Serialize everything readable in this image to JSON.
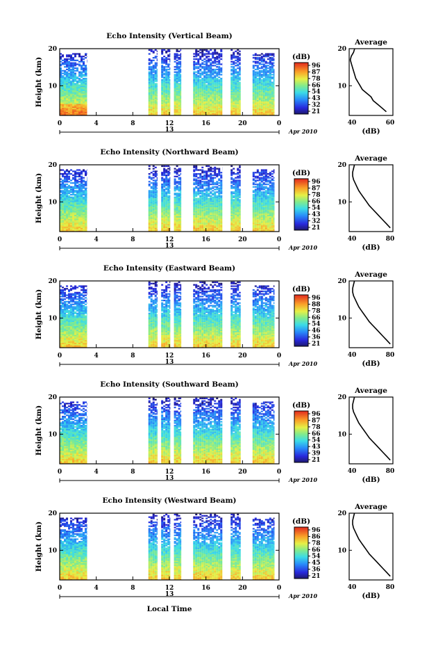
{
  "figure": {
    "x_label": "Local Time",
    "date_label": "Apr 2010",
    "day_label": "13",
    "colorbar_unit": "(dB)",
    "colorbar_ticks": [
      "96",
      "87",
      "78",
      "66",
      "54",
      "43",
      "32",
      "21"
    ],
    "avg_title": "Average",
    "avg_xlabel": "(dB)"
  },
  "chart_data": [
    {
      "type": "heatmap",
      "title": "Echo Intensity (Vertical Beam)",
      "ylabel": "Height (km)",
      "xlim": [
        0,
        24
      ],
      "ylim": [
        2,
        20
      ],
      "x_ticks": [
        "0",
        "4",
        "8",
        "12",
        "16",
        "20",
        "0"
      ],
      "y_ticks": [
        "20",
        "10"
      ],
      "colorbar": {
        "unit": "(dB)",
        "ticks": [
          96,
          87,
          78,
          66,
          54,
          43,
          32,
          21
        ]
      },
      "data_intervals_hours": [
        [
          0,
          3
        ],
        [
          9.7,
          10.7
        ],
        [
          11.1,
          12.1
        ],
        [
          12.5,
          13.3
        ],
        [
          14.6,
          17.8
        ],
        [
          18.7,
          19.8
        ],
        [
          21.1,
          23.5
        ]
      ],
      "average_profile": {
        "title": "Average",
        "xlabel": "(dB)",
        "xlim": [
          40,
          60
        ],
        "x_ticks": [
          "40",
          "60"
        ],
        "y_ticks": [
          "20",
          "10"
        ],
        "height_km": [
          3,
          4,
          5,
          6,
          7,
          8,
          9,
          10,
          11,
          12,
          13,
          14,
          15,
          16,
          17,
          18,
          19,
          20
        ],
        "db": [
          57,
          55,
          53,
          51,
          50,
          48,
          46,
          45,
          44,
          43,
          42.5,
          42,
          41.5,
          41,
          40.5,
          41,
          42,
          42.5
        ]
      }
    },
    {
      "type": "heatmap",
      "title": "Echo Intensity (Northward Beam)",
      "ylabel": "Height (km)",
      "xlim": [
        0,
        24
      ],
      "ylim": [
        2,
        20
      ],
      "x_ticks": [
        "0",
        "4",
        "8",
        "12",
        "16",
        "20",
        "0"
      ],
      "y_ticks": [
        "20",
        "10"
      ],
      "colorbar": {
        "unit": "(dB)",
        "ticks": [
          96,
          87,
          78,
          66,
          54,
          43,
          32,
          21
        ]
      },
      "data_intervals_hours": [
        [
          0,
          3
        ],
        [
          9.7,
          10.7
        ],
        [
          11.1,
          12.1
        ],
        [
          12.5,
          13.3
        ],
        [
          14.6,
          17.8
        ],
        [
          18.7,
          19.8
        ],
        [
          21.1,
          23.5
        ]
      ],
      "average_profile": {
        "title": "Average",
        "xlabel": "(dB)",
        "xlim": [
          35,
          85
        ],
        "x_ticks": [
          "40",
          "80"
        ],
        "y_ticks": [
          "20",
          "10"
        ],
        "height_km": [
          3,
          4,
          5,
          6,
          7,
          8,
          9,
          10,
          11,
          12,
          13,
          14,
          15,
          16,
          17,
          18,
          19,
          20
        ],
        "db": [
          82,
          78,
          74,
          70,
          66,
          62,
          58,
          55,
          52,
          49,
          46,
          44,
          42,
          40,
          39,
          39,
          40,
          41
        ]
      }
    },
    {
      "type": "heatmap",
      "title": "Echo Intensity (Eastward Beam)",
      "ylabel": "Height (km)",
      "xlim": [
        0,
        24
      ],
      "ylim": [
        2,
        20
      ],
      "x_ticks": [
        "0",
        "4",
        "8",
        "12",
        "16",
        "20",
        "0"
      ],
      "y_ticks": [
        "20",
        "10"
      ],
      "colorbar": {
        "unit": "(dB)",
        "ticks": [
          96,
          88,
          78,
          66,
          54,
          46,
          36,
          21
        ]
      },
      "data_intervals_hours": [
        [
          0,
          3
        ],
        [
          9.7,
          10.7
        ],
        [
          11.1,
          12.1
        ],
        [
          12.5,
          13.3
        ],
        [
          14.6,
          17.8
        ],
        [
          18.7,
          19.8
        ],
        [
          21.1,
          23.5
        ]
      ],
      "average_profile": {
        "title": "Average",
        "xlabel": "(dB)",
        "xlim": [
          35,
          85
        ],
        "x_ticks": [
          "40",
          "80"
        ],
        "y_ticks": [
          "20",
          "10"
        ],
        "height_km": [
          3,
          4,
          5,
          6,
          7,
          8,
          9,
          10,
          11,
          12,
          13,
          14,
          15,
          16,
          17,
          18,
          19,
          20
        ],
        "db": [
          82,
          78,
          74,
          70,
          66,
          62,
          58,
          55,
          52,
          49,
          46,
          44,
          42,
          40,
          39,
          39,
          40,
          41
        ]
      }
    },
    {
      "type": "heatmap",
      "title": "Echo Intensity (Southward Beam)",
      "ylabel": "Height (km)",
      "xlim": [
        0,
        24
      ],
      "ylim": [
        2,
        20
      ],
      "x_ticks": [
        "0",
        "4",
        "8",
        "12",
        "16",
        "20",
        "0"
      ],
      "y_ticks": [
        "20",
        "10"
      ],
      "colorbar": {
        "unit": "(dB)",
        "ticks": [
          96,
          87,
          78,
          66,
          54,
          43,
          39,
          21
        ]
      },
      "data_intervals_hours": [
        [
          0,
          3
        ],
        [
          9.7,
          10.7
        ],
        [
          11.1,
          12.1
        ],
        [
          12.5,
          13.3
        ],
        [
          14.6,
          17.8
        ],
        [
          18.7,
          19.8
        ],
        [
          21.1,
          23.5
        ]
      ],
      "average_profile": {
        "title": "Average",
        "xlabel": "(dB)",
        "xlim": [
          35,
          85
        ],
        "x_ticks": [
          "40",
          "80"
        ],
        "y_ticks": [
          "20",
          "10"
        ],
        "height_km": [
          3,
          4,
          5,
          6,
          7,
          8,
          9,
          10,
          11,
          12,
          13,
          14,
          15,
          16,
          17,
          18,
          19,
          20
        ],
        "db": [
          82,
          78,
          74,
          70,
          66,
          62,
          58,
          55,
          52,
          49,
          46,
          44,
          42,
          40,
          39,
          39,
          40,
          41
        ]
      }
    },
    {
      "type": "heatmap",
      "title": "Echo Intensity (Westward Beam)",
      "ylabel": "Height (km)",
      "xlim": [
        0,
        24
      ],
      "ylim": [
        2,
        20
      ],
      "x_ticks": [
        "0",
        "4",
        "8",
        "12",
        "16",
        "20",
        "0"
      ],
      "y_ticks": [
        "20",
        "10"
      ],
      "colorbar": {
        "unit": "(dB)",
        "ticks": [
          96,
          86,
          78,
          66,
          54,
          45,
          36,
          21
        ]
      },
      "data_intervals_hours": [
        [
          0,
          3
        ],
        [
          9.7,
          10.7
        ],
        [
          11.1,
          12.1
        ],
        [
          12.5,
          13.3
        ],
        [
          14.6,
          17.8
        ],
        [
          18.7,
          19.8
        ],
        [
          21.1,
          23.5
        ]
      ],
      "average_profile": {
        "title": "Average",
        "xlabel": "(dB)",
        "xlim": [
          35,
          85
        ],
        "x_ticks": [
          "40",
          "80"
        ],
        "y_ticks": [
          "20",
          "10"
        ],
        "height_km": [
          3,
          4,
          5,
          6,
          7,
          8,
          9,
          10,
          11,
          12,
          13,
          14,
          15,
          16,
          17,
          18,
          19,
          20
        ],
        "db": [
          82,
          78,
          74,
          70,
          66,
          62,
          58,
          55,
          52,
          49,
          46,
          44,
          42,
          40,
          39,
          39,
          40,
          41
        ]
      }
    }
  ]
}
